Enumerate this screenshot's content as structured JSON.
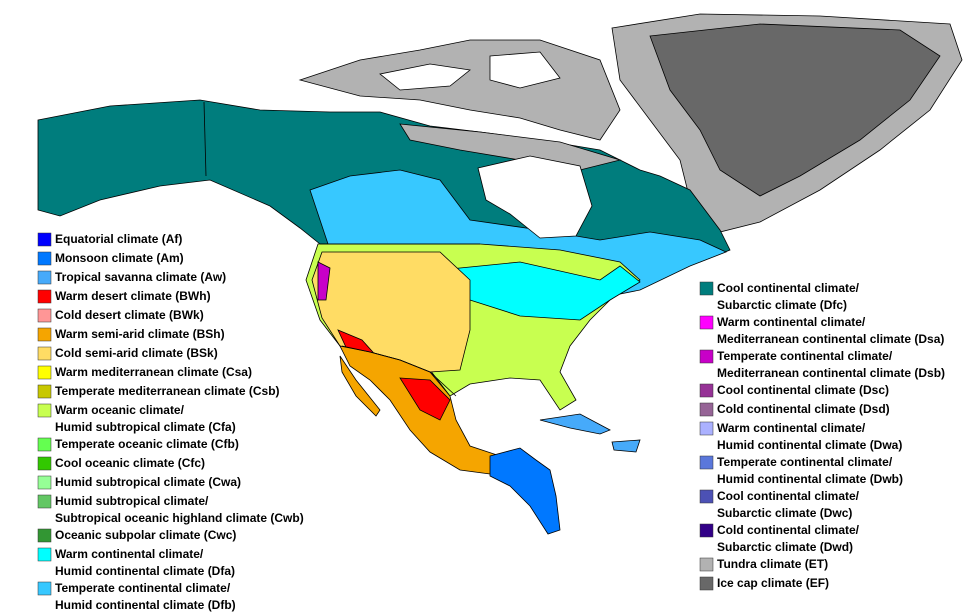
{
  "legend_left": [
    {
      "lines": [
        "Equatorial climate (Af)"
      ],
      "color": "#0000fe"
    },
    {
      "lines": [
        "Monsoon climate (Am)"
      ],
      "color": "#0078ff"
    },
    {
      "lines": [
        "Tropical savanna climate (Aw)"
      ],
      "color": "#46aafa"
    },
    {
      "lines": [
        "Warm desert climate (BWh)"
      ],
      "color": "#ff0000"
    },
    {
      "lines": [
        "Cold desert climate (BWk)"
      ],
      "color": "#ff9696"
    },
    {
      "lines": [
        "Warm semi-arid climate (BSh)"
      ],
      "color": "#f5a500"
    },
    {
      "lines": [
        "Cold semi-arid climate (BSk)"
      ],
      "color": "#ffdc64"
    },
    {
      "lines": [
        "Warm mediterranean climate (Csa)"
      ],
      "color": "#ffff00"
    },
    {
      "lines": [
        "Temperate mediterranean climate (Csb)"
      ],
      "color": "#c8c800"
    },
    {
      "lines": [
        "Warm oceanic climate/",
        "Humid subtropical climate (Cfa)"
      ],
      "color": "#c8ff50"
    },
    {
      "lines": [
        "Temperate oceanic climate (Cfb)"
      ],
      "color": "#64ff50"
    },
    {
      "lines": [
        "Cool oceanic climate (Cfc)"
      ],
      "color": "#32c800"
    },
    {
      "lines": [
        "Humid subtropical climate (Cwa)"
      ],
      "color": "#96ff96"
    },
    {
      "lines": [
        "Humid subtropical climate/",
        "Subtropical oceanic highland climate (Cwb)"
      ],
      "color": "#63c764"
    },
    {
      "lines": [
        "Oceanic subpolar climate (Cwc)"
      ],
      "color": "#329633"
    },
    {
      "lines": [
        "Warm continental climate/",
        "Humid continental climate (Dfa)"
      ],
      "color": "#00ffff"
    },
    {
      "lines": [
        "Temperate continental climate/",
        "Humid continental climate (Dfb)"
      ],
      "color": "#37c8ff"
    }
  ],
  "legend_right": [
    {
      "lines": [
        "Cool continental climate/",
        "Subarctic climate (Dfc)"
      ],
      "color": "#007d7d"
    },
    {
      "lines": [
        "Warm continental climate/",
        "Mediterranean continental climate (Dsa)"
      ],
      "color": "#ff00ff"
    },
    {
      "lines": [
        "Temperate continental climate/",
        "Mediterranean continental climate (Dsb)"
      ],
      "color": "#c800c8"
    },
    {
      "lines": [
        "Cool continental climate (Dsc)"
      ],
      "color": "#963296"
    },
    {
      "lines": [
        "Cold continental climate (Dsd)"
      ],
      "color": "#966496"
    },
    {
      "lines": [
        "Warm continental climate/",
        "Humid continental climate (Dwa)"
      ],
      "color": "#abb1ff"
    },
    {
      "lines": [
        "Temperate continental climate/",
        "Humid continental climate (Dwb)"
      ],
      "color": "#5a77db"
    },
    {
      "lines": [
        "Cool continental climate/",
        "Subarctic climate (Dwc)"
      ],
      "color": "#4c51b5"
    },
    {
      "lines": [
        "Cold continental climate/",
        "Subarctic climate (Dwd)"
      ],
      "color": "#320087"
    },
    {
      "lines": [
        "Tundra climate (ET)"
      ],
      "color": "#b2b2b2"
    },
    {
      "lines": [
        "Ice cap climate (EF)"
      ],
      "color": "#686868"
    }
  ]
}
